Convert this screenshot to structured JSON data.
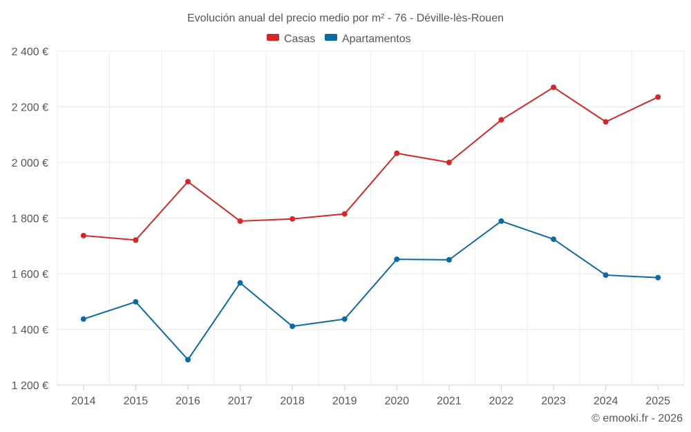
{
  "chart_data": {
    "type": "line",
    "title": "Evolución anual del precio medio por m² - 76 - Déville-lès-Rouen",
    "categories": [
      "2014",
      "2015",
      "2016",
      "2017",
      "2018",
      "2019",
      "2020",
      "2021",
      "2022",
      "2023",
      "2024",
      "2025"
    ],
    "ylim": [
      1200,
      2400
    ],
    "yticks": [
      1200,
      1400,
      1600,
      1800,
      2000,
      2200,
      2400
    ],
    "ytick_labels": [
      "1 200 €",
      "1 400 €",
      "1 600 €",
      "1 800 €",
      "2 000 €",
      "2 200 €",
      "2 400 €"
    ],
    "series": [
      {
        "name": "Casas",
        "color": "#d62728",
        "values": [
          1737,
          1721,
          1931,
          1789,
          1797,
          1815,
          2033,
          2000,
          2153,
          2270,
          2146,
          2235
        ]
      },
      {
        "name": "Apartamentos",
        "color": "#0a6aa1",
        "values": [
          1437,
          1499,
          1291,
          1567,
          1411,
          1437,
          1652,
          1650,
          1789,
          1724,
          1595,
          1586
        ]
      }
    ],
    "legend_position": "top-center",
    "grid": true,
    "credit": "© emooki.fr - 2026"
  }
}
